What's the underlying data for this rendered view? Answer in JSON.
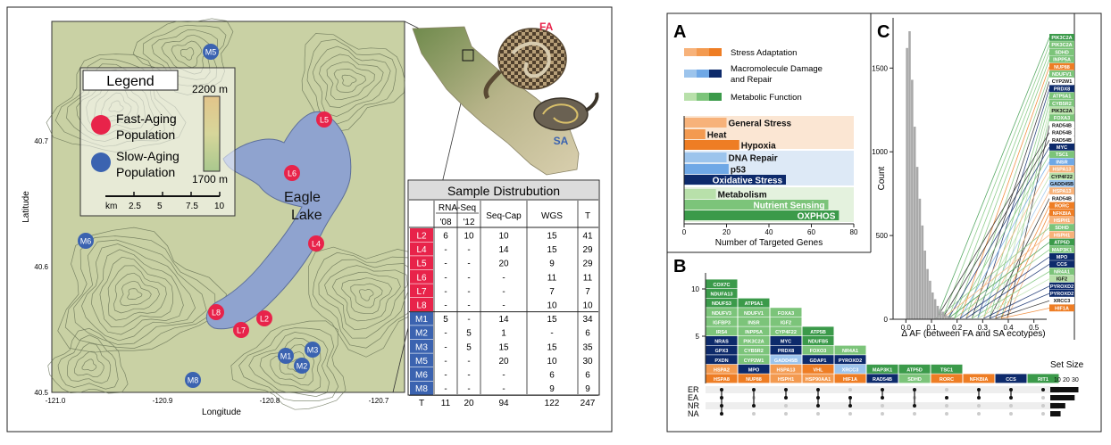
{
  "map": {
    "legend_title": "Legend",
    "legend_fast": "Fast-Aging\nPopulation",
    "legend_slow": "Slow-Aging\nPopulation",
    "elev_high": "2200 m",
    "elev_low": "1700 m",
    "scale_labels": [
      "km",
      "2.5",
      "5",
      "7.5",
      "10"
    ],
    "lake_label": "Eagle\nLake",
    "lat_label": "Latitude",
    "lon_label": "Longitude",
    "lat_ticks": [
      "40.7",
      "40.6",
      "40.5"
    ],
    "lon_ticks": [
      "-121.0",
      "-120.9",
      "-120.8",
      "-120.7"
    ],
    "fast_color": "#e8234a",
    "slow_color": "#3b63b0",
    "sites": [
      {
        "id": "L5",
        "group": "fast"
      },
      {
        "id": "L6",
        "group": "fast"
      },
      {
        "id": "L4",
        "group": "fast"
      },
      {
        "id": "L8",
        "group": "fast"
      },
      {
        "id": "L7",
        "group": "fast"
      },
      {
        "id": "L2",
        "group": "fast"
      },
      {
        "id": "M5",
        "group": "slow"
      },
      {
        "id": "M6",
        "group": "slow"
      },
      {
        "id": "M3",
        "group": "slow"
      },
      {
        "id": "M1",
        "group": "slow"
      },
      {
        "id": "M2",
        "group": "slow"
      },
      {
        "id": "M8",
        "group": "slow"
      }
    ],
    "inset_labels": {
      "fa": "FA",
      "sa": "SA"
    }
  },
  "sample_table": {
    "title": "Sample Distrubution",
    "headers": {
      "rnaseq": "RNA-Seq",
      "y08": "'08",
      "y12": "'12",
      "seqcap": "Seq-Cap",
      "wgs": "WGS",
      "t": "T"
    },
    "rows": [
      {
        "site": "L2",
        "v": [
          "6",
          "10",
          "10",
          "15",
          "41"
        ]
      },
      {
        "site": "L4",
        "v": [
          "-",
          "-",
          "14",
          "15",
          "29"
        ]
      },
      {
        "site": "L5",
        "v": [
          "-",
          "-",
          "20",
          "9",
          "29"
        ]
      },
      {
        "site": "L6",
        "v": [
          "-",
          "-",
          "-",
          "11",
          "11"
        ]
      },
      {
        "site": "L7",
        "v": [
          "-",
          "-",
          "-",
          "7",
          "7"
        ]
      },
      {
        "site": "L8",
        "v": [
          "-",
          "-",
          "-",
          "10",
          "10"
        ]
      },
      {
        "site": "M1",
        "v": [
          "5",
          "-",
          "14",
          "15",
          "34"
        ]
      },
      {
        "site": "M2",
        "v": [
          "-",
          "5",
          "1",
          "-",
          "6"
        ]
      },
      {
        "site": "M3",
        "v": [
          "-",
          "5",
          "15",
          "15",
          "35"
        ]
      },
      {
        "site": "M5",
        "v": [
          "-",
          "-",
          "20",
          "10",
          "30"
        ]
      },
      {
        "site": "M6",
        "v": [
          "-",
          "-",
          "-",
          "6",
          "6"
        ]
      },
      {
        "site": "M8",
        "v": [
          "-",
          "-",
          "-",
          "9",
          "9"
        ]
      }
    ],
    "total": {
      "site": "T",
      "v": [
        "11",
        "20",
        "94",
        "122",
        "247"
      ]
    }
  },
  "panel_a": {
    "letter": "A",
    "legend": [
      "Stress Adaptation",
      "Macromolecule Damage\nand Repair",
      "Metabolic Function"
    ],
    "xlabel": "Number of Targeted Genes"
  },
  "panel_b": {
    "letter": "B",
    "set_size_label": "Set Size",
    "set_size_ticks": [
      "10",
      "20",
      "30"
    ],
    "sets": [
      "ER",
      "EA",
      "NR",
      "NA"
    ]
  },
  "panel_c": {
    "letter": "C",
    "xlabel": "Δ AF (between FA and SA ecotypes)",
    "ylabel": "Count"
  },
  "chart_data": [
    {
      "type": "bar",
      "panel": "A",
      "orientation": "horizontal",
      "categories": [
        "General Stress",
        "Heat",
        "Hypoxia",
        "DNA Repair",
        "p53",
        "Oxidative Stress",
        "Metabolism",
        "Nutrient Sensing",
        "OXPHOS"
      ],
      "values": [
        20,
        10,
        26,
        20,
        21,
        48,
        15,
        68,
        73
      ],
      "groups": [
        "Stress Adaptation",
        "Stress Adaptation",
        "Stress Adaptation",
        "Macromolecule Damage and Repair",
        "Macromolecule Damage and Repair",
        "Macromolecule Damage and Repair",
        "Metabolic Function",
        "Metabolic Function",
        "Metabolic Function"
      ],
      "colors": [
        "#f7b27a",
        "#f39a50",
        "#ee7d24",
        "#9cc4ec",
        "#6fa8e6",
        "#0d2a6b",
        "#b8e0aa",
        "#7cc47a",
        "#3b9a4a"
      ],
      "xlabel": "Number of Targeted Genes",
      "xlim": [
        0,
        80
      ],
      "xticks": [
        "0",
        "20",
        "40",
        "60",
        "80"
      ]
    },
    {
      "type": "bar",
      "panel": "B",
      "yticks": [
        "5",
        "10"
      ],
      "columns": [
        {
          "genes": [
            "COX7C",
            "NDUFA13",
            "NDUFS3",
            "NDUFV3",
            "IGFBP3",
            "IRS4",
            "NRAS",
            "GPX3",
            "PXDN",
            "HSPA2",
            "HSPA8"
          ],
          "dots": [
            0,
            1,
            2,
            3
          ],
          "set": "ER EA NR NA"
        },
        {
          "genes": [
            "ATP5A1",
            "NDUFV1",
            "INSR",
            "INPP5A",
            "PIK3C2A",
            "CYB5R2",
            "CYP2W1",
            "MPO",
            "NUP88"
          ],
          "dots": [
            0,
            2
          ]
        },
        {
          "genes": [
            "FOXA3",
            "IGF2",
            "CYP4F22",
            "MYC",
            "PRDX8",
            "GADD45B",
            "HSPA13",
            "HSPH1"
          ],
          "dots": [
            0,
            1
          ]
        },
        {
          "genes": [
            "ATP5B",
            "NDUFB5",
            "FOXO3",
            "GDAP1",
            "VHL",
            "HSP90AA1"
          ],
          "dots": [
            0,
            1,
            2
          ]
        },
        {
          "genes": [
            "NR4A1",
            "PYROXD2",
            "XRCC3",
            "HIF1A"
          ],
          "dots": [
            1,
            2
          ]
        },
        {
          "genes": [
            "MAP3K1",
            "RAD54B"
          ],
          "dots": [
            0,
            1
          ]
        },
        {
          "genes": [
            "ATP5D",
            "SDHD"
          ],
          "dots": [
            0,
            2
          ]
        },
        {
          "genes": [
            "TSC1",
            "RORC"
          ],
          "dots": [
            1
          ]
        },
        {
          "genes": [
            "NFKBIA"
          ],
          "dots": [
            0,
            1
          ]
        },
        {
          "genes": [
            "CCS"
          ],
          "dots": [
            0,
            1
          ]
        },
        {
          "genes": [
            "RIT1"
          ],
          "dots": [
            0
          ]
        }
      ],
      "set_sizes": {
        "ER": 30,
        "EA": 26,
        "NR": 16,
        "NA": 11
      }
    },
    {
      "type": "bar",
      "panel": "C",
      "xlabel": "Δ AF (between FA and SA ecotypes)",
      "ylabel": "Count",
      "xticks": [
        "0.0",
        "0.1",
        "0.2",
        "0.3",
        "0.4",
        "0.5"
      ],
      "yticks": [
        "0",
        "500",
        "1000",
        "1500"
      ],
      "xlim": [
        -0.05,
        0.55
      ],
      "ylim": [
        0,
        1800
      ],
      "bins": [
        0.0,
        0.01,
        0.02,
        0.03,
        0.04,
        0.05,
        0.06,
        0.07,
        0.08,
        0.09,
        0.1,
        0.11,
        0.12,
        0.13,
        0.14,
        0.15,
        0.16,
        0.17,
        0.18,
        0.2,
        0.22,
        0.25
      ],
      "counts": [
        1620,
        1720,
        1430,
        1150,
        910,
        720,
        560,
        410,
        300,
        230,
        160,
        120,
        80,
        60,
        45,
        30,
        20,
        15,
        10,
        6,
        3,
        2
      ],
      "gene_labels": [
        "PIK3C2A",
        "PIK3C2A",
        "SDHD",
        "INPP5A",
        "NUP88",
        "NDUFV1",
        "CYP2W1",
        "PRDX8",
        "ATP5A1",
        "CYB5R2",
        "PIK3C2A",
        "FOXA3",
        "RAD54B",
        "RAD54B",
        "RAD54B",
        "MYC",
        "TSC1",
        "INSR",
        "HSPA13",
        "CYP4F22",
        "GADD45B",
        "HSPA13",
        "RAD54B",
        "RORC",
        "NFKBIA",
        "HSPH1",
        "SDHD",
        "HSPH1",
        "ATP5D",
        "MAP3K1",
        "MPO",
        "CCS",
        "NR4A1",
        "IGF2",
        "PYROXD2",
        "PYROXD2",
        "XRCC3",
        "HIF1A"
      ]
    }
  ],
  "colors": {
    "stress": "#ee7d24",
    "repair": "#0d2a6b",
    "metab": "#3b9a4a",
    "map_bg": "#c9d1a4",
    "lake": "#8fa3cf"
  }
}
